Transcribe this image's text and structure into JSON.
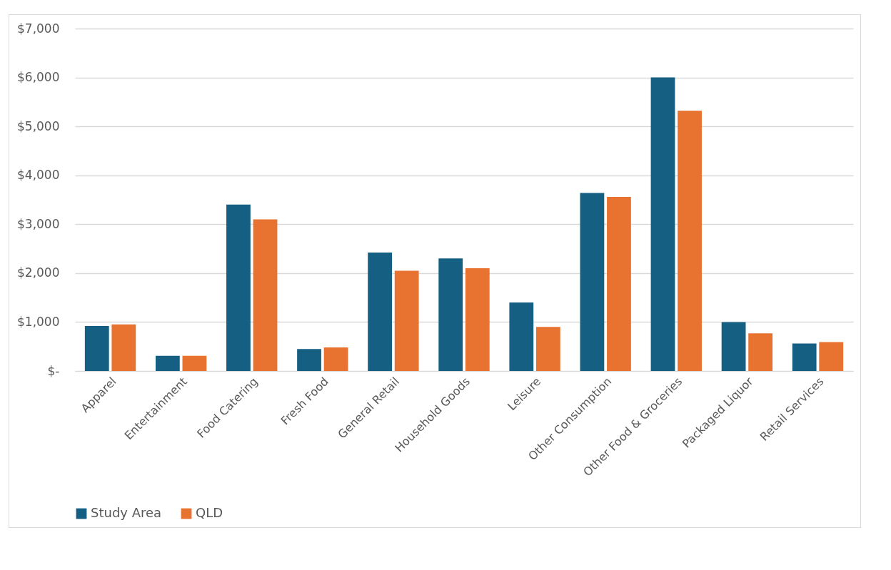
{
  "chart_data": {
    "type": "bar",
    "categories": [
      "Apparel",
      "Entertainment",
      "Food Catering",
      "Fresh Food",
      "General Retail",
      "Household Goods",
      "Leisure",
      "Other Consumption",
      "Other Food & Groceries",
      "Packaged Liquor",
      "Retail Services"
    ],
    "series": [
      {
        "name": "Study Area",
        "color": "#155f83",
        "values": [
          920,
          310,
          3400,
          450,
          2420,
          2300,
          1400,
          3640,
          6000,
          1000,
          560
        ]
      },
      {
        "name": "QLD",
        "color": "#e87230",
        "values": [
          950,
          310,
          3100,
          480,
          2050,
          2100,
          900,
          3560,
          5320,
          770,
          590
        ]
      }
    ],
    "ylim": [
      0,
      7000
    ],
    "yticks": [
      {
        "value": 0,
        "label": "$-"
      },
      {
        "value": 1000,
        "label": "$1,000"
      },
      {
        "value": 2000,
        "label": "$2,000"
      },
      {
        "value": 3000,
        "label": "$3,000"
      },
      {
        "value": 4000,
        "label": "$4,000"
      },
      {
        "value": 5000,
        "label": "$5,000"
      },
      {
        "value": 6000,
        "label": "$6,000"
      },
      {
        "value": 7000,
        "label": "$7,000"
      }
    ],
    "grid": "y",
    "legend": "bottom"
  }
}
